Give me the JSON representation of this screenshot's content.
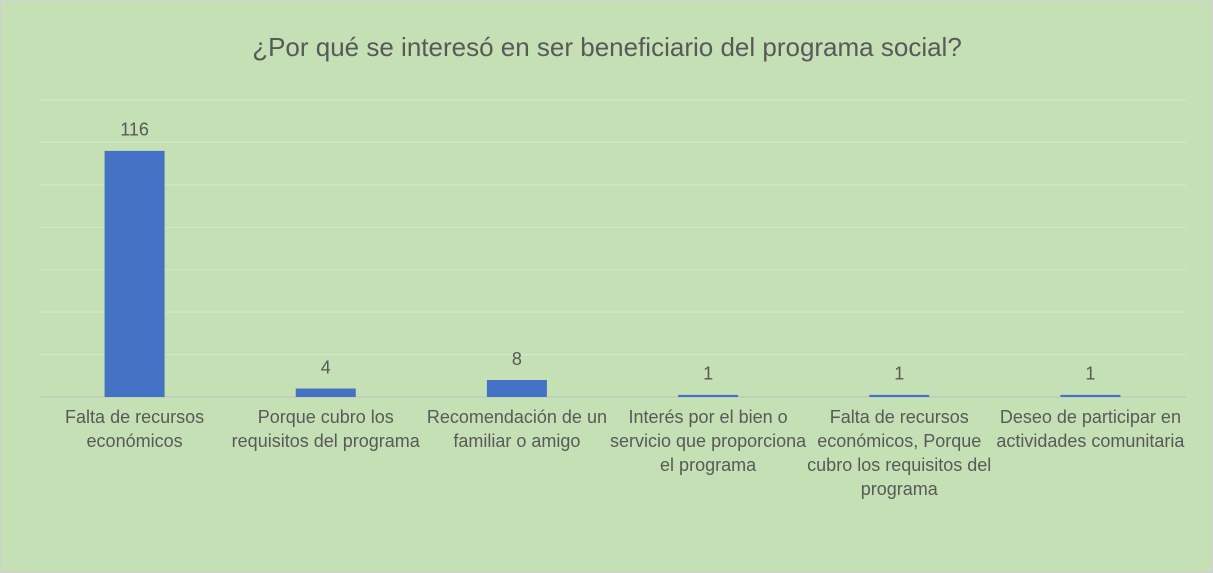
{
  "chart_data": {
    "type": "bar",
    "title": "¿Por qué se interesó en ser beneficiario del programa social?",
    "categories": [
      "Falta de recursos económicos",
      "Porque cubro los requisitos del programa",
      "Recomendación de un familiar o amigo",
      "Interés por el bien o servicio que proporciona el programa",
      "Falta de recursos económicos, Porque cubro los requisitos del programa",
      "Deseo de participar en actividades comunitaria"
    ],
    "values": [
      116,
      4,
      8,
      1,
      1,
      1
    ],
    "color": "#4472c4",
    "ylim": [
      0,
      140
    ],
    "yticks": [
      0,
      20,
      40,
      60,
      80,
      100,
      120,
      140
    ],
    "grid": true
  }
}
